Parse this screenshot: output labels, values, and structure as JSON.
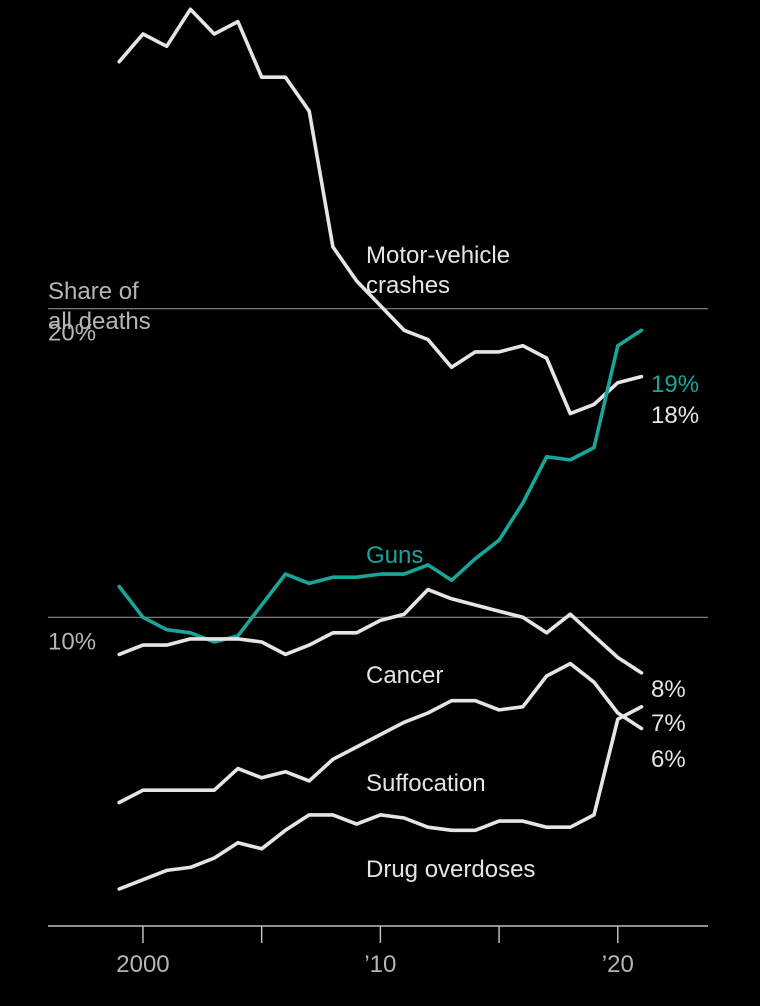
{
  "chart_data": {
    "type": "line",
    "ylabel": "Share of\nall deaths",
    "ylim": [
      0,
      30
    ],
    "xlim": [
      1996,
      2023.8
    ],
    "y_ticks": [
      10,
      20
    ],
    "y_tick_labels": [
      "10%",
      "20%"
    ],
    "x_ticks": [
      2000,
      2005,
      2010,
      2015,
      2020
    ],
    "x_tick_labels": [
      "2000",
      "",
      "’10",
      "",
      "’20"
    ],
    "grid": true,
    "colors": {
      "background": "#000000",
      "Guns": "#1aa59b",
      "default": "#e5e5e5",
      "gridline": "#8a8a8a",
      "axis_label": "#b5b5b5"
    },
    "x": [
      1999,
      2000,
      2001,
      2002,
      2003,
      2004,
      2005,
      2006,
      2007,
      2008,
      2009,
      2010,
      2011,
      2012,
      2013,
      2014,
      2015,
      2016,
      2017,
      2018,
      2019,
      2020,
      2021
    ],
    "series": [
      {
        "name": "Motor-vehicle crashes",
        "label_lines": [
          "Motor-vehicle",
          "crashes"
        ],
        "values": [
          28.0,
          28.9,
          28.5,
          29.7,
          28.9,
          29.3,
          27.5,
          27.5,
          26.4,
          22.0,
          20.9,
          20.1,
          19.3,
          19.0,
          18.1,
          18.6,
          18.6,
          18.8,
          18.4,
          16.6,
          16.9,
          17.6,
          17.8
        ],
        "end_label": "18%"
      },
      {
        "name": "Guns",
        "label_lines": [
          "Guns"
        ],
        "values": [
          11.0,
          10.0,
          9.6,
          9.5,
          9.2,
          9.4,
          10.4,
          11.4,
          11.1,
          11.3,
          11.3,
          11.4,
          11.4,
          11.7,
          11.2,
          11.9,
          12.5,
          13.7,
          15.2,
          15.1,
          15.5,
          18.8,
          19.3
        ],
        "end_label": "19%"
      },
      {
        "name": "Cancer",
        "label_lines": [
          "Cancer"
        ],
        "values": [
          8.8,
          9.1,
          9.1,
          9.3,
          9.3,
          9.3,
          9.2,
          8.8,
          9.1,
          9.5,
          9.5,
          9.9,
          10.1,
          10.9,
          10.6,
          10.4,
          10.2,
          10.0,
          9.5,
          10.1,
          9.4,
          8.7,
          8.2
        ],
        "end_label": "8%"
      },
      {
        "name": "Suffocation",
        "label_lines": [
          "Suffocation"
        ],
        "values": [
          4.0,
          4.4,
          4.4,
          4.4,
          4.4,
          5.1,
          4.8,
          5.0,
          4.7,
          5.4,
          5.8,
          6.2,
          6.6,
          6.9,
          7.3,
          7.3,
          7.0,
          7.1,
          8.1,
          8.5,
          7.9,
          6.9,
          6.4
        ],
        "end_label": "6%"
      },
      {
        "name": "Drug overdoses",
        "label_lines": [
          "Drug overdoses"
        ],
        "values": [
          1.2,
          1.5,
          1.8,
          1.9,
          2.2,
          2.7,
          2.5,
          3.1,
          3.6,
          3.6,
          3.3,
          3.6,
          3.5,
          3.2,
          3.1,
          3.1,
          3.4,
          3.4,
          3.2,
          3.2,
          3.6,
          6.7,
          7.1
        ],
        "end_label": "7%"
      }
    ]
  }
}
